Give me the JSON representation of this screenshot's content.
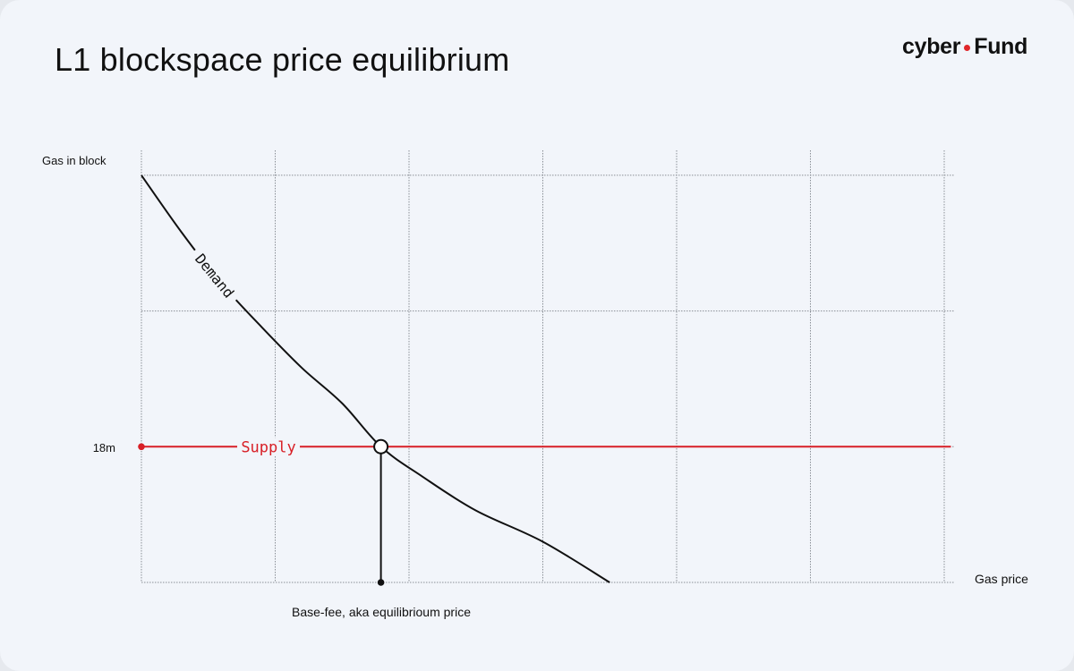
{
  "title": "L1 blockspace price equilibrium",
  "logo": {
    "left": "cyber",
    "right": "Fund",
    "dot_color": "#e0262a"
  },
  "colors": {
    "background": "#f2f5fa",
    "grid": "#8a8f96",
    "demand": "#111111",
    "supply": "#d81f26",
    "equilibrium_fill": "#ffffff"
  },
  "chart_data": {
    "type": "line",
    "xlabel": "Gas price",
    "ylabel": "Gas in block",
    "x_ticks": [
      1,
      2,
      3,
      4,
      5,
      6
    ],
    "y_ticks": [
      1,
      2,
      3
    ],
    "grid": true,
    "xlim": [
      0,
      6.05
    ],
    "ylim": [
      0,
      3.05
    ],
    "series": [
      {
        "name": "Demand",
        "type": "curve",
        "label_x": 0.55,
        "points": [
          [
            0.0,
            3.0
          ],
          [
            0.3,
            2.58
          ],
          [
            0.6,
            2.2
          ],
          [
            0.9,
            1.88
          ],
          [
            1.2,
            1.58
          ],
          [
            1.5,
            1.32
          ],
          [
            1.79,
            1.0
          ],
          [
            2.1,
            0.78
          ],
          [
            2.5,
            0.53
          ],
          [
            3.0,
            0.3
          ],
          [
            3.5,
            0.0
          ]
        ]
      },
      {
        "name": "Supply",
        "type": "horizontal",
        "y": 1.0,
        "x_range": [
          0.0,
          6.05
        ],
        "label_x": 0.95
      }
    ],
    "y_annotation": {
      "label": "18m",
      "y": 1.0
    },
    "equilibrium": {
      "x": 1.79,
      "y": 1.0,
      "label": "Base-fee, aka equilibrioum price"
    }
  }
}
